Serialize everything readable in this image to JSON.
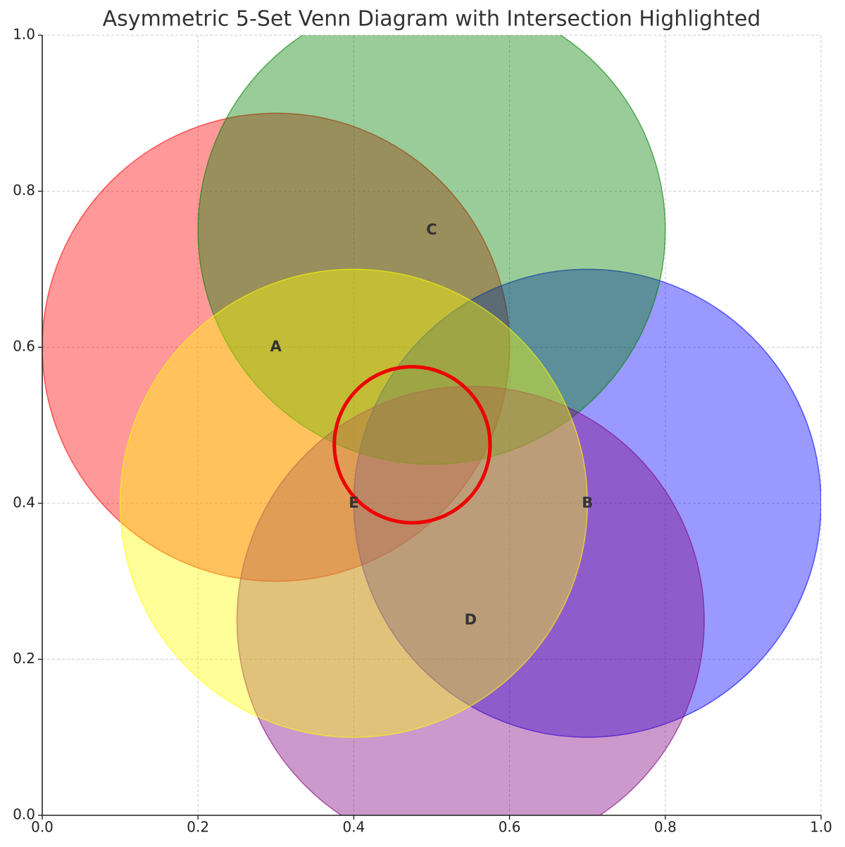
{
  "chart_data": {
    "type": "venn",
    "title": "Asymmetric 5-Set Venn Diagram with Intersection Highlighted",
    "xlim": [
      0,
      1
    ],
    "ylim": [
      0,
      1
    ],
    "xticks": [
      {
        "value": 0,
        "label": "0.0"
      },
      0.2,
      0.4,
      0.6,
      0.8,
      {
        "value": 1,
        "label": "1.0"
      }
    ],
    "yticks": [
      {
        "value": 0,
        "label": "0.0"
      },
      0.2,
      0.4,
      0.6,
      0.8,
      {
        "value": 1,
        "label": "1.0"
      }
    ],
    "grid": true,
    "alpha": 0.4,
    "sets": [
      {
        "name": "A",
        "x": 0.3,
        "y": 0.6,
        "r": 0.3,
        "color": "#ff0000"
      },
      {
        "name": "B",
        "x": 0.7,
        "y": 0.4,
        "r": 0.3,
        "color": "#0000ff"
      },
      {
        "name": "C",
        "x": 0.5,
        "y": 0.75,
        "r": 0.3,
        "color": "#008000"
      },
      {
        "name": "D",
        "x": 0.55,
        "y": 0.25,
        "r": 0.3,
        "color": "#800080"
      },
      {
        "name": "E",
        "x": 0.4,
        "y": 0.4,
        "r": 0.3,
        "color": "#ffff00"
      }
    ],
    "highlight": {
      "x": 0.475,
      "y": 0.475,
      "r": 0.1,
      "color": "#ee0000"
    }
  }
}
